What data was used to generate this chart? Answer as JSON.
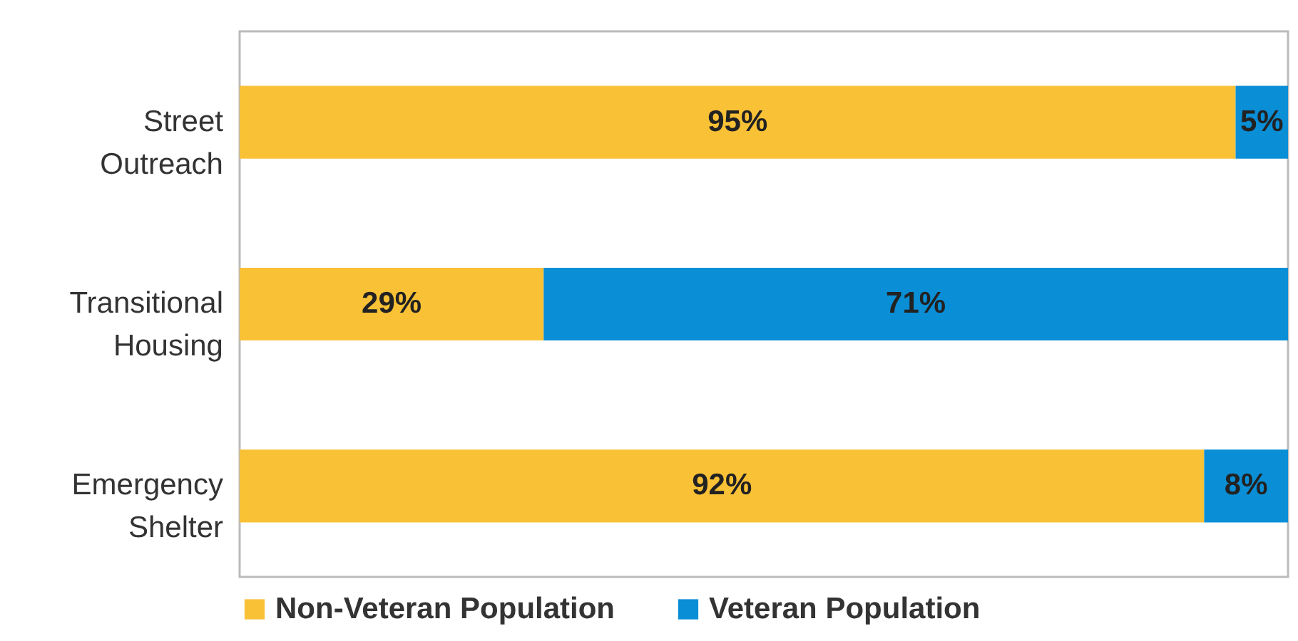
{
  "chart_data": {
    "type": "bar",
    "orientation": "horizontal",
    "stacked": true,
    "categories": [
      "Street Outreach",
      "Transitional Housing",
      "Emergency Shelter"
    ],
    "series": [
      {
        "name": "Non-Veteran Population",
        "color": "#f9c136",
        "values": [
          95,
          29,
          92
        ],
        "value_labels": [
          "95%",
          "29%",
          "92%"
        ]
      },
      {
        "name": "Veteran Population",
        "color": "#0a8ed6",
        "values": [
          5,
          71,
          8
        ],
        "value_labels": [
          "5%",
          "71%",
          "8%"
        ]
      }
    ],
    "legend": "bottom"
  }
}
